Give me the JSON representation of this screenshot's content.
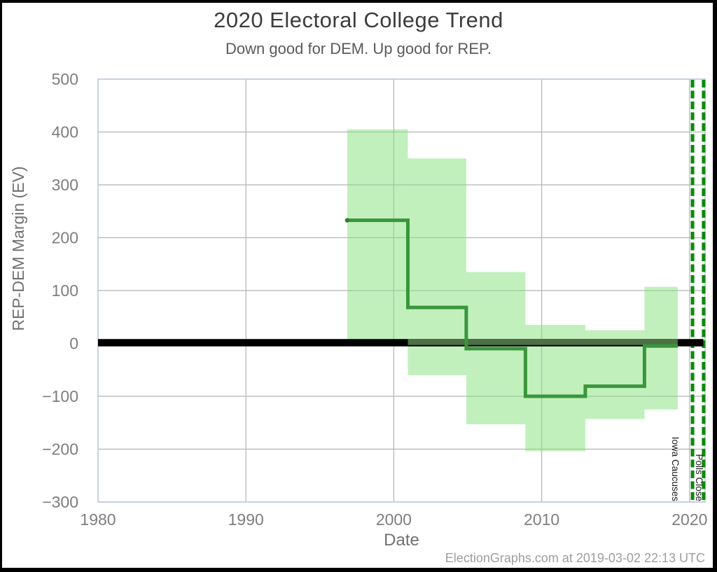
{
  "page": {
    "title": "2020 Electoral College Trend",
    "subtitle": "Down good for DEM. Up good for REP.",
    "footer": "ElectionGraphs.com at 2019-03-02 22:13 UTC"
  },
  "chart_data": {
    "type": "line",
    "title": "2020 Electoral College Trend",
    "subtitle": "Down good for DEM. Up good for REP.",
    "xlabel": "Date",
    "ylabel": "REP-DEM Margin (EV)",
    "xlim": [
      1980,
      2021.05
    ],
    "ylim": [
      -300,
      500
    ],
    "grid": true,
    "legend": "none",
    "xticks": [
      {
        "v": 1980,
        "label": "1980"
      },
      {
        "v": 1990,
        "label": "1990"
      },
      {
        "v": 2000,
        "label": "2000"
      },
      {
        "v": 2010,
        "label": "2010"
      },
      {
        "v": 2020,
        "label": "2020"
      }
    ],
    "yticks": [
      {
        "v": 500,
        "label": "500"
      },
      {
        "v": 400,
        "label": "400"
      },
      {
        "v": 300,
        "label": "300"
      },
      {
        "v": 200,
        "label": "200"
      },
      {
        "v": 100,
        "label": "100"
      },
      {
        "v": 0,
        "label": "0"
      },
      {
        "v": -100,
        "label": "−100"
      },
      {
        "v": -200,
        "label": "−200"
      },
      {
        "v": -300,
        "label": "−300"
      }
    ],
    "step_boundaries": [
      1996.85,
      2000.95,
      2004.9,
      2008.9,
      2012.95,
      2016.95,
      2019.2
    ],
    "series": [
      {
        "name": "expected-margin",
        "type": "step-line",
        "color": "#3a963a",
        "line_width": 5,
        "values": [
          233,
          68,
          -10,
          -100,
          -81,
          -5
        ]
      },
      {
        "name": "best-case-range",
        "type": "step-band",
        "fill": "rgba(132,226,124,0.5)",
        "top": [
          405,
          350,
          135,
          35,
          25,
          107
        ],
        "bottom": [
          7,
          -60,
          -153,
          -204,
          -143,
          -125
        ]
      }
    ],
    "zero_line": {
      "value": 0,
      "color": "#000000",
      "width": 10.5,
      "x_start": 1980,
      "x_end": 2020.93
    },
    "zero_overlay": {
      "value": 0,
      "color": "#4d7044",
      "width": 8.5,
      "x_start": 2000.95,
      "x_end": 2019.2
    },
    "event_lines": [
      {
        "label": "Iowa Caucuses",
        "x": 2020.2,
        "color": "#0a8a0a",
        "width": 5,
        "dash": "11 4.5"
      },
      {
        "label": "Polls Close",
        "x": 2020.95,
        "color": "#0a8a0a",
        "width": 5,
        "dash": "11 4.5"
      }
    ],
    "colors": {
      "grid": "#b3b3b3",
      "frame": "#bdc8da",
      "tick": "#7e7e7e",
      "axis_label": "#707070",
      "annotation_text": "#1c1c1c",
      "line_start_dot": "#2f7d33",
      "background": "#ffffff",
      "screen_border": "#000000"
    }
  }
}
